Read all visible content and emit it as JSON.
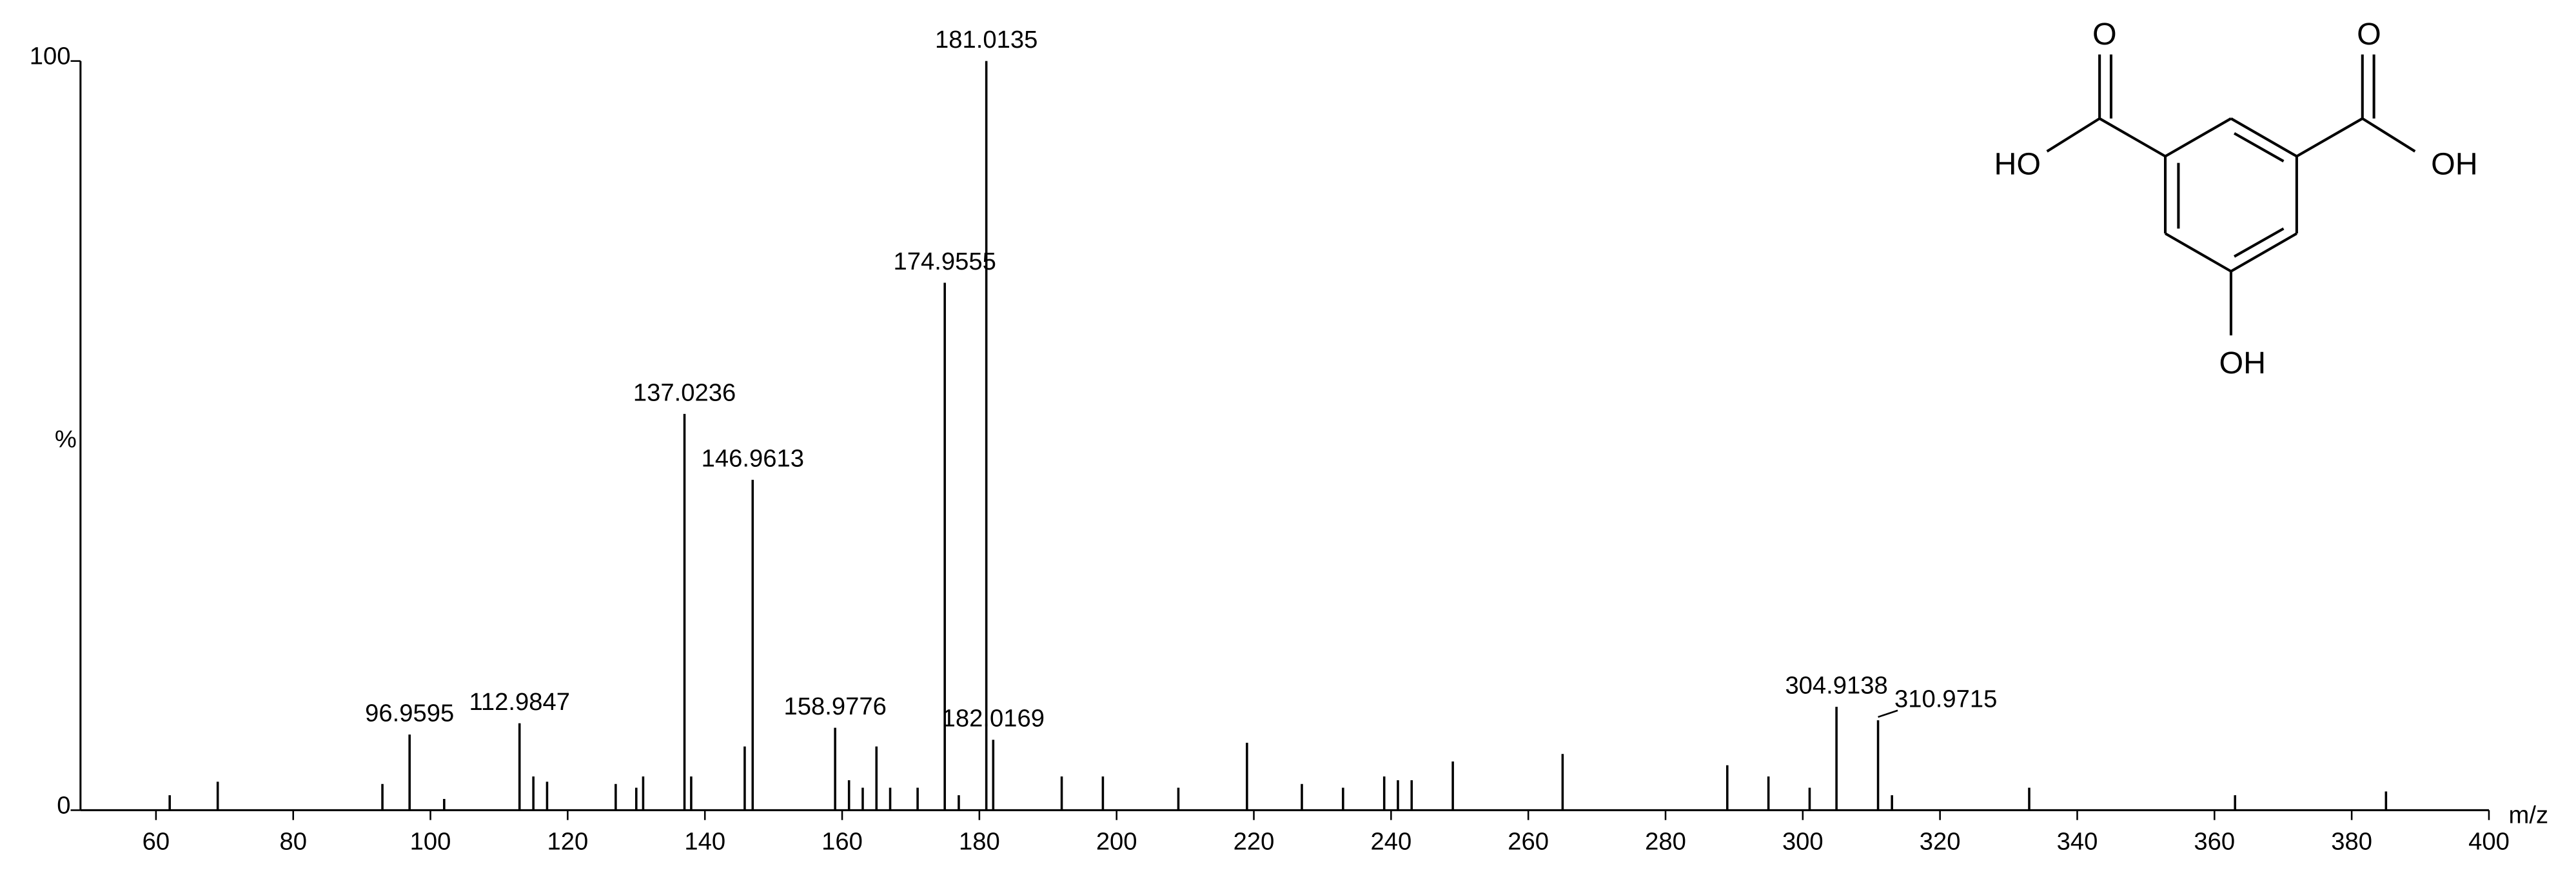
{
  "chart_data": {
    "type": "stem",
    "x_label": "m/z",
    "y_label": "%",
    "xlim": [
      49,
      400
    ],
    "ylim": [
      0,
      100
    ],
    "xticks": [
      60,
      80,
      100,
      120,
      140,
      160,
      180,
      200,
      220,
      240,
      260,
      280,
      300,
      320,
      340,
      360,
      380,
      400
    ],
    "yticks": [
      0,
      100
    ],
    "color": "#000000",
    "x": [
      96.9595,
      112.9847,
      137.0236,
      146.9613,
      158.9776,
      174.9555,
      181.0135,
      182.0169,
      304.9138,
      310.9715
    ],
    "values": [
      10.1,
      11.6,
      52.9,
      44.1,
      11,
      70.4,
      100,
      9.4,
      13.8,
      12
    ],
    "minor": {
      "x": [
        62,
        69,
        93,
        102,
        115,
        117,
        127,
        130,
        131,
        138,
        145.8,
        161,
        163,
        165,
        167,
        171,
        177,
        192,
        198,
        209,
        219,
        227,
        233,
        239,
        241,
        243,
        249,
        265,
        289,
        295,
        301,
        313,
        333,
        363,
        385
      ],
      "values": [
        2,
        3.8,
        3.5,
        1.5,
        4.5,
        3.8,
        3.5,
        3,
        4.5,
        4.5,
        8.5,
        4,
        3,
        8.5,
        3,
        3,
        2,
        4.5,
        4.5,
        3,
        9,
        3.5,
        3,
        4.5,
        4,
        4,
        6.5,
        7.5,
        6,
        4.5,
        3,
        2,
        3,
        2,
        2.5
      ]
    },
    "structure_labels": [
      "O",
      "O",
      "HO",
      "OH",
      "OH"
    ]
  }
}
